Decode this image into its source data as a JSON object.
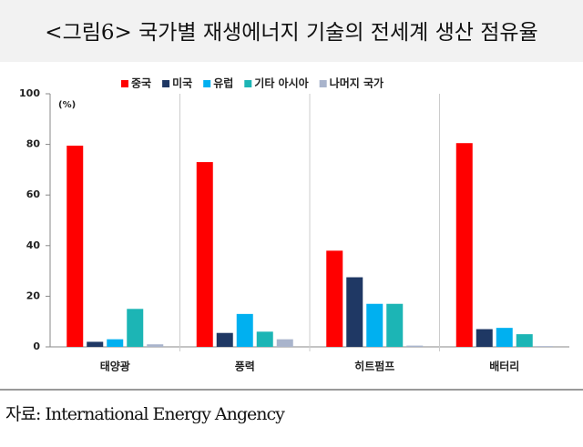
{
  "chart_data": {
    "type": "bar",
    "title": "<그림6> 국가별 재생에너지 기술의 전세계 생산 점유율",
    "unit": "(%)",
    "categories": [
      "태양광",
      "풍력",
      "히트펌프",
      "배터리"
    ],
    "series": [
      {
        "name": "중국",
        "color": "#ff0000",
        "values": [
          79.5,
          73,
          38,
          80.5
        ]
      },
      {
        "name": "미국",
        "color": "#1f3864",
        "values": [
          2,
          5.5,
          27.5,
          7
        ]
      },
      {
        "name": "유럽",
        "color": "#00b0f0",
        "values": [
          3,
          13,
          17,
          7.5
        ]
      },
      {
        "name": "기타 아시아",
        "color": "#1cb5b5",
        "values": [
          15,
          6,
          17,
          5
        ]
      },
      {
        "name": "나머지 국가",
        "color": "#a9b4cc",
        "values": [
          1,
          3,
          0.5,
          0.3
        ]
      }
    ],
    "ylim": [
      0,
      100
    ],
    "yticks": [
      0,
      20,
      40,
      60,
      80,
      100
    ],
    "legend": "top",
    "source": "자료: International Energy Angency"
  }
}
